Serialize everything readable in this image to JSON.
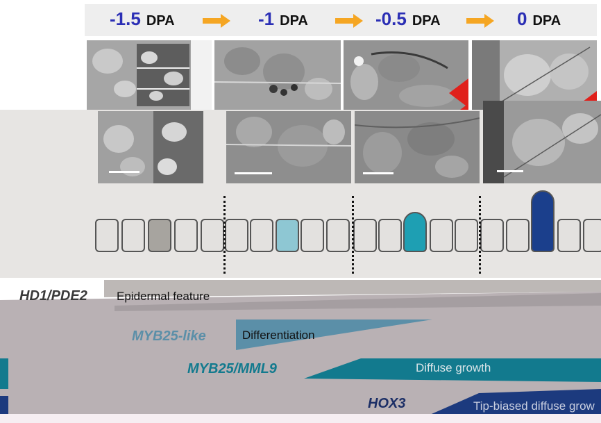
{
  "stages": [
    {
      "value": "-1.5",
      "unit": "DPA"
    },
    {
      "value": "-1",
      "unit": "DPA"
    },
    {
      "value": "-0.5",
      "unit": "DPA"
    },
    {
      "value": "0",
      "unit": "DPA"
    }
  ],
  "colors": {
    "stage_number": "#2b2fb5",
    "stage_arrow": "#f5a623",
    "red_arrow": "#e0201b",
    "epidermal": "#a8a3a1",
    "myb25_like": "#5b8fa8",
    "myb25_mml9": "#127a8e",
    "hox3": "#1c3a7e",
    "cell_fill": "#e3e1df",
    "cell_light_gray": "#a7a49f",
    "cell_light_blue": "#8ec7d3",
    "cell_teal": "#1e9fb3",
    "cell_dark_blue": "#1b3f8c"
  },
  "icons": [
    "right-arrow-icon",
    "red-arrow-icon"
  ],
  "genes": [
    {
      "name": "HD1/PDE2",
      "trait": "Epidermal feature"
    },
    {
      "name": "MYB25-like",
      "trait": "Differentiation"
    },
    {
      "name": "MYB25/MML9",
      "trait": "Diffuse growth"
    },
    {
      "name": "HOX3",
      "trait": "Tip-biased diffuse grow"
    }
  ]
}
